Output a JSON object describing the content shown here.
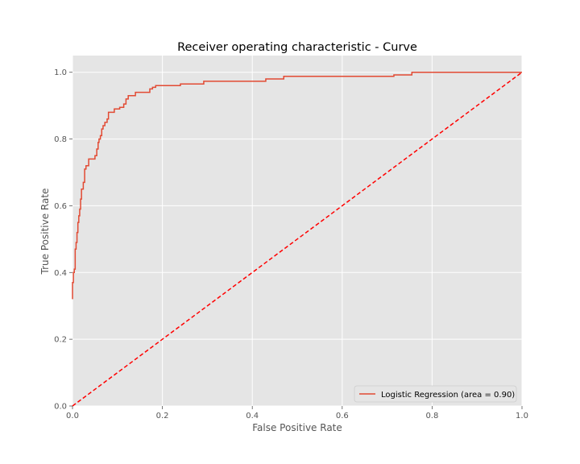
{
  "chart_data": {
    "type": "line",
    "title": "Receiver operating characteristic - Curve",
    "xlabel": "False Positive Rate",
    "ylabel": "True Positive Rate",
    "xlim": [
      0.0,
      1.0
    ],
    "ylim": [
      0.0,
      1.05
    ],
    "xticks": [
      "0.0",
      "0.2",
      "0.4",
      "0.6",
      "0.8",
      "1.0"
    ],
    "yticks": [
      "0.0",
      "0.2",
      "0.4",
      "0.6",
      "0.8",
      "1.0"
    ],
    "grid": true,
    "legend_position": "bottom-right",
    "background": "#e5e5e5",
    "series": [
      {
        "name": "Logistic Regression (area = 0.90)",
        "color": "#e24a33",
        "style": "solid",
        "step": true,
        "x": [
          0.0,
          0.0,
          0.002,
          0.002,
          0.004,
          0.004,
          0.006,
          0.006,
          0.008,
          0.008,
          0.01,
          0.01,
          0.012,
          0.012,
          0.014,
          0.014,
          0.016,
          0.016,
          0.018,
          0.018,
          0.02,
          0.02,
          0.024,
          0.024,
          0.027,
          0.027,
          0.03,
          0.03,
          0.036,
          0.036,
          0.042,
          0.042,
          0.05,
          0.05,
          0.054,
          0.054,
          0.057,
          0.057,
          0.059,
          0.059,
          0.062,
          0.062,
          0.065,
          0.065,
          0.068,
          0.068,
          0.072,
          0.072,
          0.077,
          0.077,
          0.08,
          0.08,
          0.084,
          0.084,
          0.093,
          0.093,
          0.105,
          0.105,
          0.114,
          0.114,
          0.119,
          0.119,
          0.124,
          0.124,
          0.13,
          0.13,
          0.14,
          0.14,
          0.172,
          0.172,
          0.178,
          0.178,
          0.185,
          0.185,
          0.24,
          0.24,
          0.292,
          0.292,
          0.43,
          0.43,
          0.47,
          0.47,
          0.715,
          0.715,
          0.755,
          0.755,
          1.0
        ],
        "y": [
          0.32,
          0.37,
          0.37,
          0.4,
          0.4,
          0.41,
          0.41,
          0.47,
          0.47,
          0.49,
          0.49,
          0.52,
          0.52,
          0.55,
          0.55,
          0.57,
          0.57,
          0.59,
          0.59,
          0.62,
          0.62,
          0.65,
          0.65,
          0.67,
          0.67,
          0.71,
          0.71,
          0.72,
          0.72,
          0.74,
          0.74,
          0.74,
          0.74,
          0.75,
          0.75,
          0.77,
          0.77,
          0.79,
          0.79,
          0.8,
          0.8,
          0.81,
          0.81,
          0.83,
          0.83,
          0.84,
          0.84,
          0.85,
          0.85,
          0.86,
          0.86,
          0.88,
          0.88,
          0.88,
          0.88,
          0.89,
          0.89,
          0.895,
          0.895,
          0.905,
          0.905,
          0.92,
          0.92,
          0.93,
          0.93,
          0.93,
          0.93,
          0.94,
          0.94,
          0.95,
          0.95,
          0.955,
          0.955,
          0.96,
          0.96,
          0.965,
          0.965,
          0.973,
          0.973,
          0.98,
          0.98,
          0.988,
          0.988,
          0.992,
          0.992,
          1.0,
          1.0
        ]
      },
      {
        "name": "",
        "color": "#ff0000",
        "style": "dashed",
        "x": [
          0.0,
          1.0
        ],
        "y": [
          0.0,
          1.0
        ]
      }
    ]
  }
}
